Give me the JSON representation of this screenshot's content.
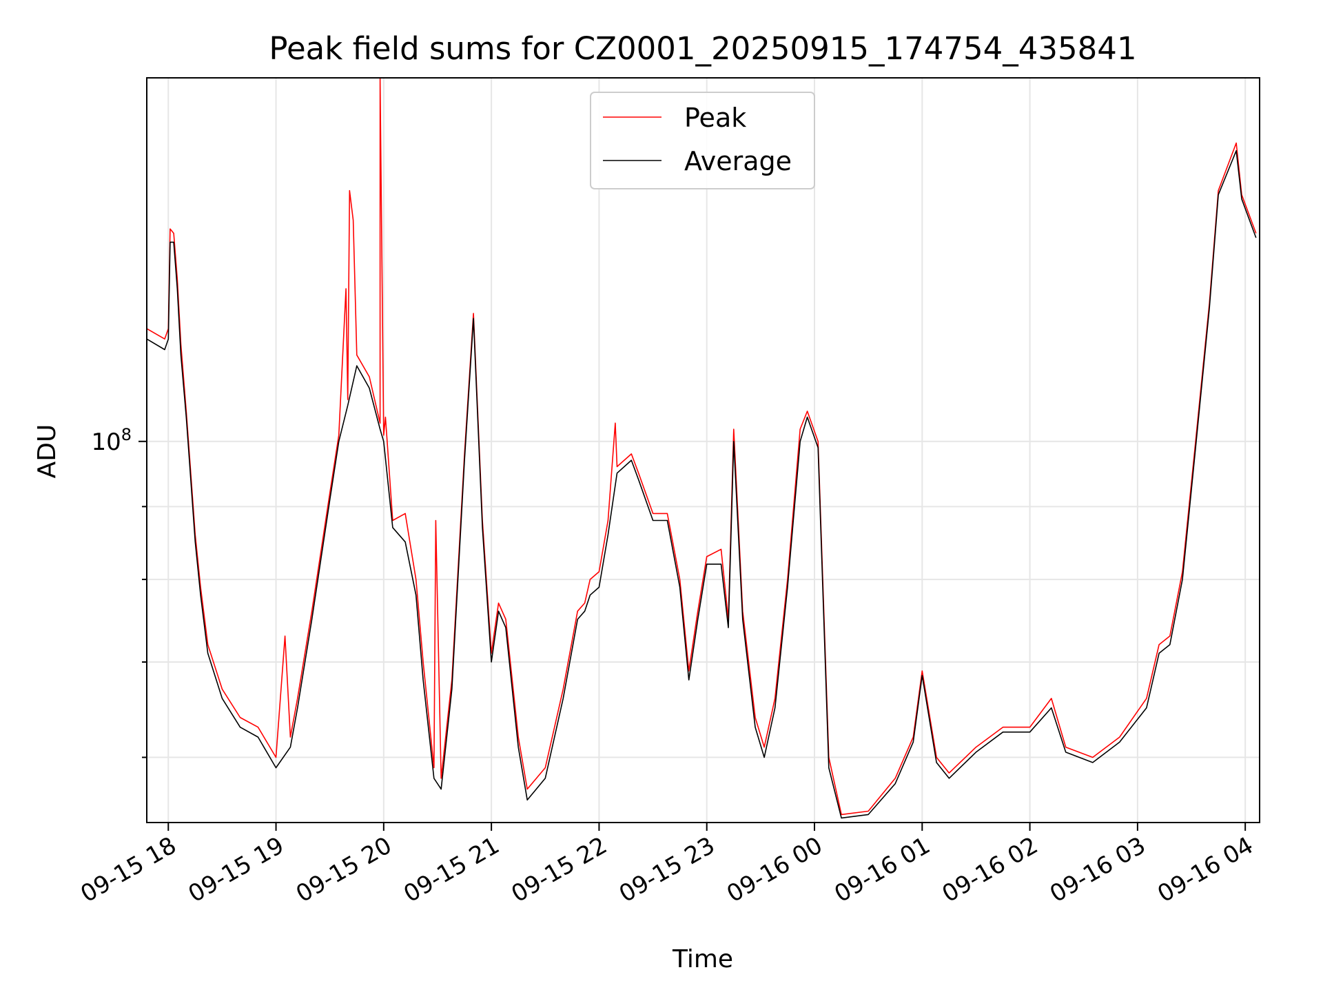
{
  "chart_data": {
    "type": "line",
    "title": "Peak field sums for CZ0001_20250915_174754_435841",
    "xlabel": "Time",
    "ylabel": "ADU",
    "y_scale": "log",
    "y_tick_label": {
      "base": "10",
      "exponent": "8"
    },
    "x_ticks": [
      "09-15 18",
      "09-15 19",
      "09-15 20",
      "09-15 21",
      "09-15 22",
      "09-15 23",
      "09-16 00",
      "09-16 01",
      "09-16 02",
      "09-16 03",
      "09-16 04"
    ],
    "xlim": [
      "2025-09-15 17:48",
      "2025-09-16 04:08"
    ],
    "ylim": [
      54000000,
      180000000
    ],
    "grid": true,
    "legend_position": "upper center",
    "series": [
      {
        "name": "Peak",
        "color": "#ff0000",
        "points": [
          [
            "2025-09-15 17:48",
            120000000
          ],
          [
            "2025-09-15 17:58",
            118000000
          ],
          [
            "2025-09-15 18:00",
            120000000
          ],
          [
            "2025-09-15 18:01",
            141000000
          ],
          [
            "2025-09-15 18:03",
            140000000
          ],
          [
            "2025-09-15 18:05",
            130000000
          ],
          [
            "2025-09-15 18:07",
            117000000
          ],
          [
            "2025-09-15 18:10",
            105000000
          ],
          [
            "2025-09-15 18:12",
            97000000
          ],
          [
            "2025-09-15 18:15",
            86000000
          ],
          [
            "2025-09-15 18:18",
            79000000
          ],
          [
            "2025-09-15 18:22",
            72000000
          ],
          [
            "2025-09-15 18:30",
            67000000
          ],
          [
            "2025-09-15 18:40",
            64000000
          ],
          [
            "2025-09-15 18:50",
            63000000
          ],
          [
            "2025-09-15 19:00",
            60000000
          ],
          [
            "2025-09-15 19:08",
            62000000
          ],
          [
            "2025-09-15 19:12",
            66000000
          ],
          [
            "2025-09-15 19:20",
            76000000
          ],
          [
            "2025-09-15 19:30",
            92000000
          ],
          [
            "2025-09-15 19:35",
            101000000
          ],
          [
            "2025-09-15 19:40",
            107000000
          ],
          [
            "2025-09-15 19:45",
            115000000
          ],
          [
            "2025-09-15 19:52",
            111000000
          ],
          [
            "2025-09-15 19:58",
            103000000
          ],
          [
            "2025-09-15 20:00",
            101000000
          ],
          [
            "2025-09-15 20:05",
            88000000
          ],
          [
            "2025-09-15 20:12",
            89000000
          ],
          [
            "2025-09-15 20:18",
            80000000
          ],
          [
            "2025-09-15 20:22",
            70000000
          ],
          [
            "2025-09-15 20:28",
            59000000
          ],
          [
            "2025-09-15 20:32",
            58000000
          ],
          [
            "2025-09-15 20:38",
            68000000
          ],
          [
            "2025-09-15 20:45",
            98000000
          ],
          [
            "2025-09-15 20:50",
            123000000
          ],
          [
            "2025-09-15 20:55",
            88000000
          ],
          [
            "2025-09-15 21:00",
            71000000
          ],
          [
            "2025-09-15 21:04",
            77000000
          ],
          [
            "2025-09-15 21:08",
            75000000
          ],
          [
            "2025-09-15 21:15",
            62000000
          ],
          [
            "2025-09-15 21:20",
            57000000
          ],
          [
            "2025-09-15 21:30",
            59000000
          ],
          [
            "2025-09-15 21:40",
            67000000
          ],
          [
            "2025-09-15 21:48",
            76000000
          ],
          [
            "2025-09-15 21:52",
            77000000
          ],
          [
            "2025-09-15 21:55",
            80000000
          ],
          [
            "2025-09-15 22:00",
            81000000
          ],
          [
            "2025-09-15 22:05",
            88000000
          ],
          [
            "2025-09-15 22:10",
            96000000
          ],
          [
            "2025-09-15 22:18",
            98000000
          ],
          [
            "2025-09-15 22:22",
            95000000
          ],
          [
            "2025-09-15 22:30",
            89000000
          ],
          [
            "2025-09-15 22:38",
            89000000
          ],
          [
            "2025-09-15 22:45",
            80000000
          ],
          [
            "2025-09-15 22:50",
            69000000
          ],
          [
            "2025-09-15 22:55",
            76000000
          ],
          [
            "2025-09-15 23:00",
            83000000
          ],
          [
            "2025-09-15 23:08",
            84000000
          ],
          [
            "2025-09-15 23:12",
            75000000
          ],
          [
            "2025-09-15 23:15",
            102000000
          ],
          [
            "2025-09-15 23:20",
            76000000
          ],
          [
            "2025-09-15 23:27",
            64000000
          ],
          [
            "2025-09-15 23:32",
            61000000
          ],
          [
            "2025-09-15 23:38",
            66000000
          ],
          [
            "2025-09-15 23:45",
            80000000
          ],
          [
            "2025-09-15 23:52",
            102000000
          ],
          [
            "2025-09-15 23:56",
            105000000
          ],
          [
            "2025-09-16 00:02",
            100000000
          ],
          [
            "2025-09-16 00:08",
            60000000
          ],
          [
            "2025-09-16 00:15",
            54700000
          ],
          [
            "2025-09-16 00:30",
            55000000
          ],
          [
            "2025-09-16 00:45",
            58000000
          ],
          [
            "2025-09-16 00:55",
            62000000
          ],
          [
            "2025-09-16 01:00",
            69000000
          ],
          [
            "2025-09-16 01:08",
            60000000
          ],
          [
            "2025-09-16 01:15",
            58500000
          ],
          [
            "2025-09-16 01:30",
            61000000
          ],
          [
            "2025-09-16 01:45",
            63000000
          ],
          [
            "2025-09-16 02:00",
            63000000
          ],
          [
            "2025-09-16 02:12",
            66000000
          ],
          [
            "2025-09-16 02:20",
            61000000
          ],
          [
            "2025-09-16 02:35",
            60000000
          ],
          [
            "2025-09-16 02:50",
            62000000
          ],
          [
            "2025-09-16 03:05",
            66000000
          ],
          [
            "2025-09-16 03:12",
            72000000
          ],
          [
            "2025-09-16 03:18",
            73000000
          ],
          [
            "2025-09-16 03:25",
            81000000
          ],
          [
            "2025-09-16 03:32",
            99000000
          ],
          [
            "2025-09-16 03:40",
            125000000
          ],
          [
            "2025-09-16 03:45",
            150000000
          ],
          [
            "2025-09-16 03:55",
            162000000
          ],
          [
            "2025-09-16 03:58",
            149000000
          ],
          [
            "2025-09-16 04:06",
            140000000
          ]
        ]
      },
      {
        "name": "Average",
        "color": "#000000",
        "points": [
          [
            "2025-09-15 17:48",
            118000000
          ],
          [
            "2025-09-15 17:58",
            116000000
          ],
          [
            "2025-09-15 18:00",
            118000000
          ],
          [
            "2025-09-15 18:01",
            138000000
          ],
          [
            "2025-09-15 18:03",
            138000000
          ],
          [
            "2025-09-15 18:05",
            128000000
          ],
          [
            "2025-09-15 18:07",
            115000000
          ],
          [
            "2025-09-15 18:10",
            104000000
          ],
          [
            "2025-09-15 18:12",
            96000000
          ],
          [
            "2025-09-15 18:15",
            85000000
          ],
          [
            "2025-09-15 18:18",
            78000000
          ],
          [
            "2025-09-15 18:22",
            71000000
          ],
          [
            "2025-09-15 18:30",
            66000000
          ],
          [
            "2025-09-15 18:40",
            63000000
          ],
          [
            "2025-09-15 18:50",
            62000000
          ],
          [
            "2025-09-15 19:00",
            59000000
          ],
          [
            "2025-09-15 19:08",
            61000000
          ],
          [
            "2025-09-15 19:12",
            65000000
          ],
          [
            "2025-09-15 19:20",
            75000000
          ],
          [
            "2025-09-15 19:30",
            91000000
          ],
          [
            "2025-09-15 19:35",
            100000000
          ],
          [
            "2025-09-15 19:40",
            106000000
          ],
          [
            "2025-09-15 19:45",
            113000000
          ],
          [
            "2025-09-15 19:52",
            109000000
          ],
          [
            "2025-09-15 19:58",
            102000000
          ],
          [
            "2025-09-15 20:00",
            100000000
          ],
          [
            "2025-09-15 20:05",
            87000000
          ],
          [
            "2025-09-15 20:12",
            85000000
          ],
          [
            "2025-09-15 20:18",
            78000000
          ],
          [
            "2025-09-15 20:22",
            68000000
          ],
          [
            "2025-09-15 20:28",
            58000000
          ],
          [
            "2025-09-15 20:32",
            57000000
          ],
          [
            "2025-09-15 20:38",
            67000000
          ],
          [
            "2025-09-15 20:45",
            97000000
          ],
          [
            "2025-09-15 20:50",
            122000000
          ],
          [
            "2025-09-15 20:55",
            87000000
          ],
          [
            "2025-09-15 21:00",
            70000000
          ],
          [
            "2025-09-15 21:04",
            76000000
          ],
          [
            "2025-09-15 21:08",
            74000000
          ],
          [
            "2025-09-15 21:15",
            61000000
          ],
          [
            "2025-09-15 21:20",
            56000000
          ],
          [
            "2025-09-15 21:30",
            58000000
          ],
          [
            "2025-09-15 21:40",
            66000000
          ],
          [
            "2025-09-15 21:48",
            75000000
          ],
          [
            "2025-09-15 21:52",
            76000000
          ],
          [
            "2025-09-15 21:55",
            78000000
          ],
          [
            "2025-09-15 22:00",
            79000000
          ],
          [
            "2025-09-15 22:05",
            86000000
          ],
          [
            "2025-09-15 22:10",
            95000000
          ],
          [
            "2025-09-15 22:18",
            97000000
          ],
          [
            "2025-09-15 22:22",
            94000000
          ],
          [
            "2025-09-15 22:30",
            88000000
          ],
          [
            "2025-09-15 22:38",
            88000000
          ],
          [
            "2025-09-15 22:45",
            79000000
          ],
          [
            "2025-09-15 22:50",
            68000000
          ],
          [
            "2025-09-15 22:55",
            75000000
          ],
          [
            "2025-09-15 23:00",
            82000000
          ],
          [
            "2025-09-15 23:08",
            82000000
          ],
          [
            "2025-09-15 23:12",
            74000000
          ],
          [
            "2025-09-15 23:15",
            100000000
          ],
          [
            "2025-09-15 23:20",
            75000000
          ],
          [
            "2025-09-15 23:27",
            63000000
          ],
          [
            "2025-09-15 23:32",
            60000000
          ],
          [
            "2025-09-15 23:38",
            65000000
          ],
          [
            "2025-09-15 23:45",
            79000000
          ],
          [
            "2025-09-15 23:52",
            100000000
          ],
          [
            "2025-09-15 23:56",
            104000000
          ],
          [
            "2025-09-16 00:02",
            99000000
          ],
          [
            "2025-09-16 00:08",
            59000000
          ],
          [
            "2025-09-16 00:15",
            54400000
          ],
          [
            "2025-09-16 00:30",
            54700000
          ],
          [
            "2025-09-16 00:45",
            57500000
          ],
          [
            "2025-09-16 00:55",
            61500000
          ],
          [
            "2025-09-16 01:00",
            68500000
          ],
          [
            "2025-09-16 01:08",
            59500000
          ],
          [
            "2025-09-16 01:15",
            58000000
          ],
          [
            "2025-09-16 01:30",
            60500000
          ],
          [
            "2025-09-16 01:45",
            62500000
          ],
          [
            "2025-09-16 02:00",
            62500000
          ],
          [
            "2025-09-16 02:12",
            65000000
          ],
          [
            "2025-09-16 02:20",
            60500000
          ],
          [
            "2025-09-16 02:35",
            59500000
          ],
          [
            "2025-09-16 02:50",
            61500000
          ],
          [
            "2025-09-16 03:05",
            65000000
          ],
          [
            "2025-09-16 03:12",
            71000000
          ],
          [
            "2025-09-16 03:18",
            72000000
          ],
          [
            "2025-09-16 03:25",
            80000000
          ],
          [
            "2025-09-16 03:32",
            98000000
          ],
          [
            "2025-09-16 03:40",
            124000000
          ],
          [
            "2025-09-16 03:45",
            149000000
          ],
          [
            "2025-09-16 03:55",
            160000000
          ],
          [
            "2025-09-16 03:58",
            148000000
          ],
          [
            "2025-09-16 04:06",
            139000000
          ]
        ]
      }
    ],
    "peak_spikes": [
      [
        "2025-09-15 19:39",
        128000000
      ],
      [
        "2025-09-15 19:41",
        150000000
      ],
      [
        "2025-09-15 19:43",
        143000000
      ],
      [
        "2025-09-15 19:58",
        180000000
      ],
      [
        "2025-09-15 20:01",
        104000000
      ],
      [
        "2025-09-15 20:29",
        88000000
      ],
      [
        "2025-09-15 22:09",
        103000000
      ],
      [
        "2025-09-15 19:05",
        73000000
      ]
    ]
  }
}
